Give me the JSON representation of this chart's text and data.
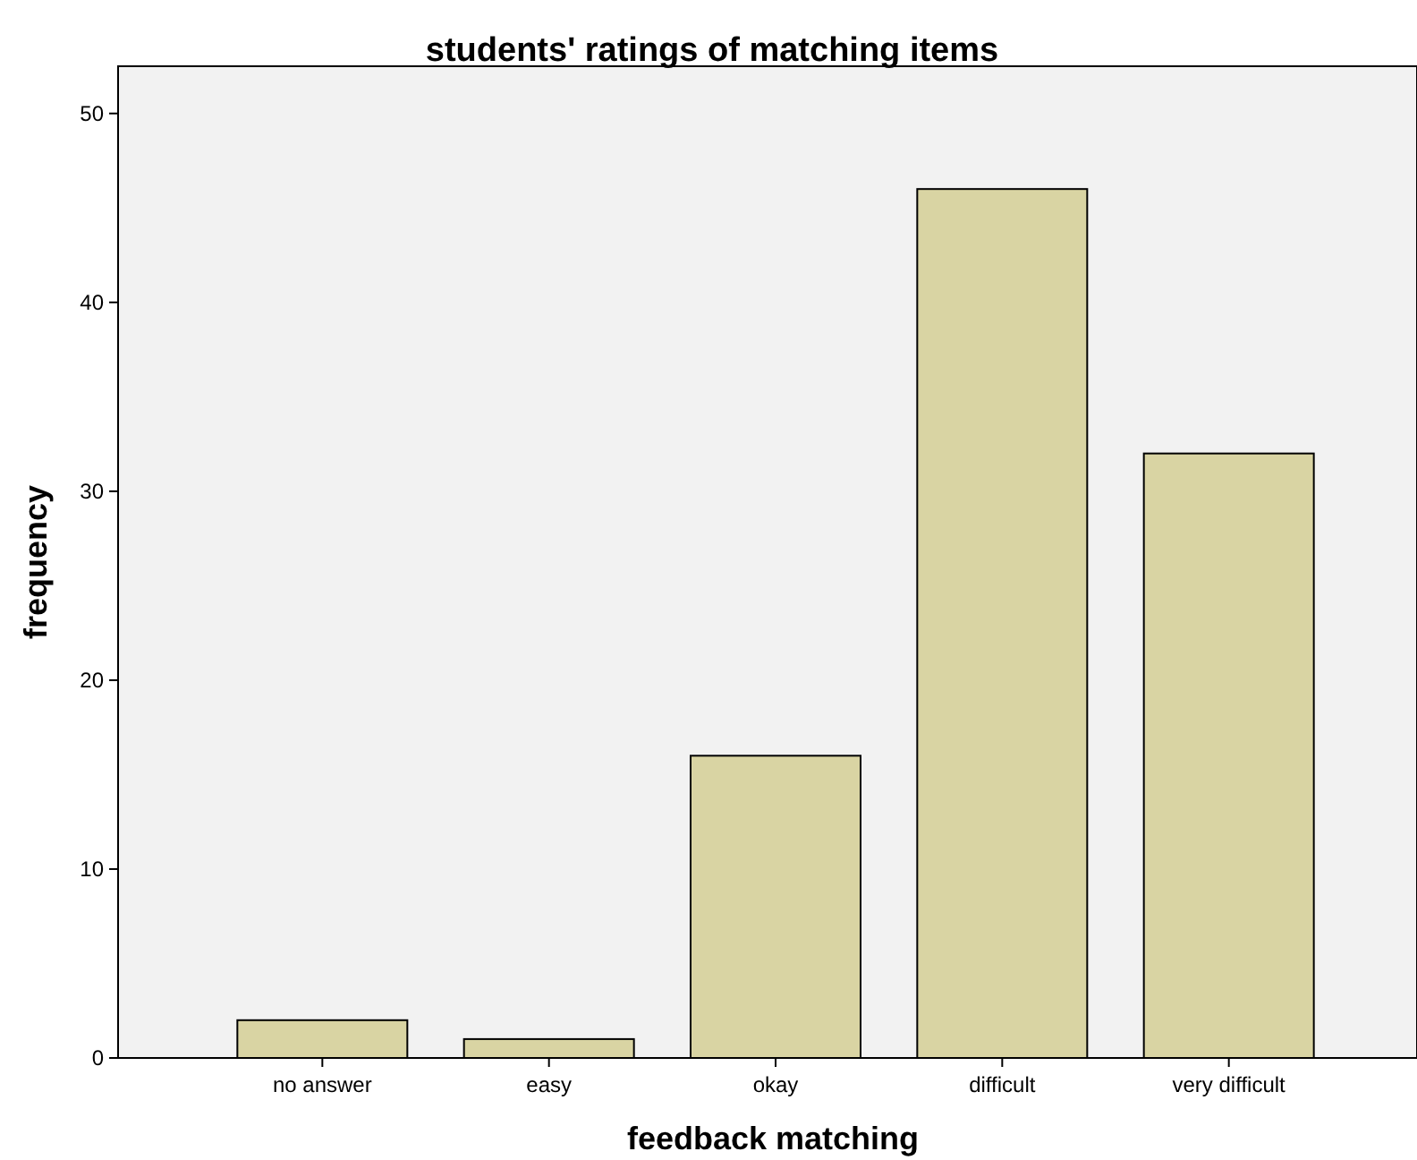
{
  "chart_data": {
    "type": "bar",
    "title": "students' ratings of matching items",
    "xlabel": "feedback matching",
    "ylabel": "frequency",
    "categories": [
      "no answer",
      "easy",
      "okay",
      "difficult",
      "very difficult"
    ],
    "values": [
      2,
      1,
      16,
      46,
      32
    ],
    "color": "#d9d4a3",
    "ylim": [
      0,
      52.5
    ],
    "yticks": [
      0,
      10,
      20,
      30,
      40,
      50
    ],
    "grid": false
  }
}
